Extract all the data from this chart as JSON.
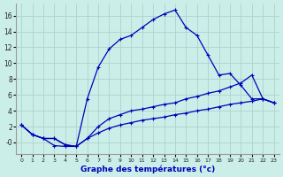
{
  "xlabel": "Graphe des températures (°c)",
  "background_color": "#cceee8",
  "grid_color": "#aad4cc",
  "line_color": "#0000bb",
  "x_ticks": [
    0,
    1,
    2,
    3,
    4,
    5,
    6,
    7,
    8,
    9,
    10,
    11,
    12,
    13,
    14,
    15,
    16,
    17,
    18,
    19,
    20,
    21,
    22,
    23
  ],
  "y_ticks": [
    0,
    2,
    4,
    6,
    8,
    10,
    12,
    14,
    16
  ],
  "y_tick_labels": [
    "-0",
    "2",
    "4",
    "6",
    "8",
    "10",
    "12",
    "14",
    "16"
  ],
  "ylim": [
    -1.5,
    17.5
  ],
  "xlim": [
    -0.5,
    23.5
  ],
  "line1_x": [
    0,
    1,
    2,
    3,
    4,
    5,
    6,
    7,
    8,
    9,
    10,
    11,
    12,
    13,
    14,
    15,
    16,
    17,
    18,
    19,
    20,
    21,
    22,
    23
  ],
  "line1_y": [
    2.2,
    1.0,
    0.5,
    -0.4,
    -0.5,
    -0.5,
    5.5,
    9.5,
    11.8,
    13.0,
    13.5,
    14.5,
    15.5,
    16.2,
    16.7,
    14.5,
    13.5,
    11.0,
    8.5,
    8.7,
    7.2,
    5.5,
    5.5,
    5.0
  ],
  "line2_x": [
    0,
    1,
    2,
    3,
    4,
    5,
    6,
    7,
    8,
    9,
    10,
    11,
    12,
    13,
    14,
    15,
    16,
    17,
    18,
    19,
    20,
    21,
    22,
    23
  ],
  "line2_y": [
    2.2,
    1.0,
    0.5,
    0.5,
    -0.3,
    -0.5,
    0.5,
    2.0,
    3.0,
    3.5,
    4.0,
    4.2,
    4.5,
    4.8,
    5.0,
    5.5,
    5.8,
    6.2,
    6.5,
    7.0,
    7.5,
    8.5,
    5.5,
    5.0
  ],
  "line3_x": [
    0,
    1,
    2,
    3,
    4,
    5,
    6,
    7,
    8,
    9,
    10,
    11,
    12,
    13,
    14,
    15,
    16,
    17,
    18,
    19,
    20,
    21,
    22,
    23
  ],
  "line3_y": [
    2.2,
    1.0,
    0.5,
    0.5,
    -0.3,
    -0.5,
    0.5,
    1.2,
    1.8,
    2.2,
    2.5,
    2.8,
    3.0,
    3.2,
    3.5,
    3.7,
    4.0,
    4.2,
    4.5,
    4.8,
    5.0,
    5.2,
    5.5,
    5.0
  ]
}
